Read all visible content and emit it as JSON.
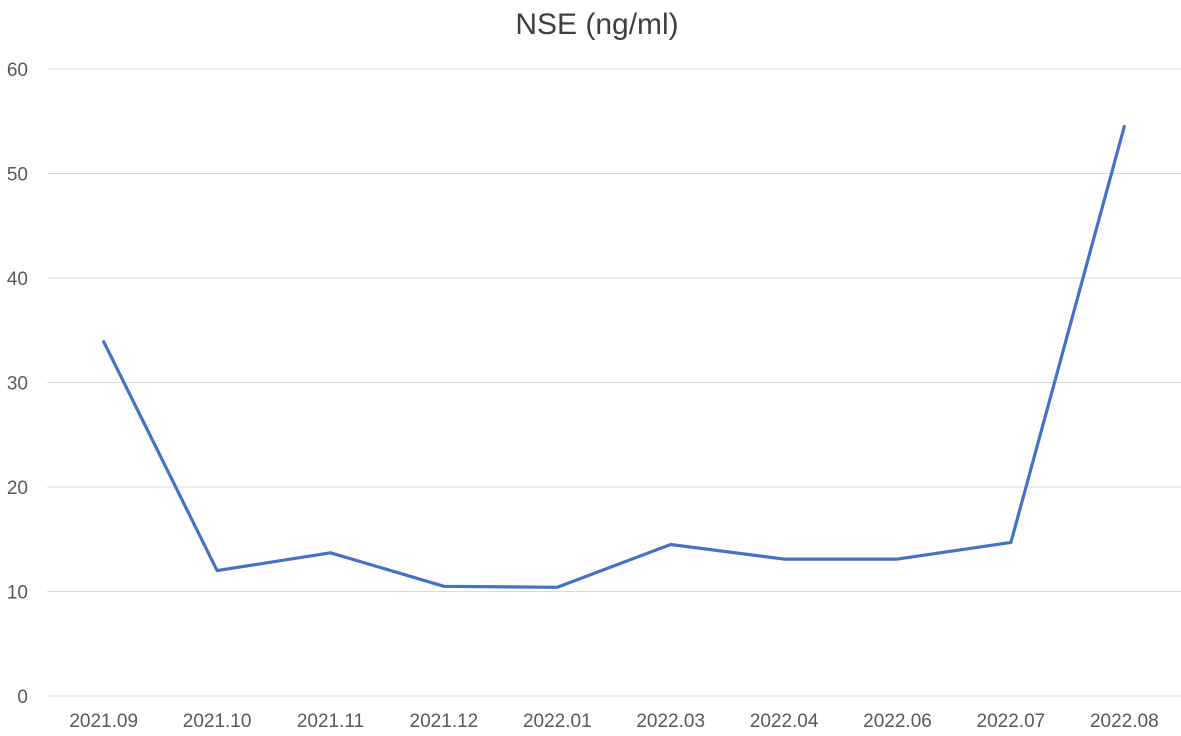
{
  "chart_data": {
    "type": "line",
    "title": "NSE (ng/ml)",
    "xlabel": "",
    "ylabel": "",
    "categories": [
      "2021.09",
      "2021.10",
      "2021.11",
      "2021.12",
      "2022.01",
      "2022.03",
      "2022.04",
      "2022.06",
      "2022.07",
      "2022.08"
    ],
    "series": [
      {
        "values": [
          33.9,
          12.0,
          13.7,
          10.5,
          10.4,
          14.5,
          13.1,
          13.1,
          14.7,
          54.5
        ],
        "color": "#4472c4"
      }
    ],
    "ylim": [
      0,
      60
    ],
    "yticks": [
      0,
      10,
      20,
      30,
      40,
      50,
      60
    ],
    "grid": true,
    "legend": "none"
  }
}
